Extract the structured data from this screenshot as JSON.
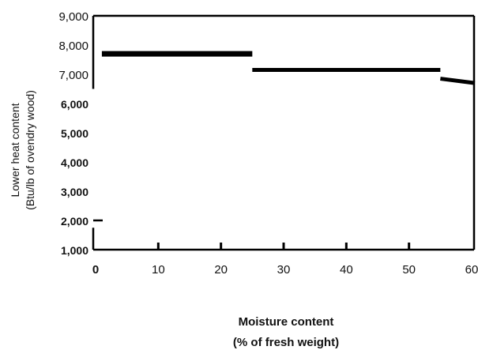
{
  "chart_data": {
    "type": "line",
    "title": "",
    "xlabel_line1": "Moisture content",
    "xlabel_line2": "(% of fresh weight)",
    "ylabel_line1": "Lower heat content",
    "ylabel_line2": "(Btu/lb of ovendry wood)",
    "xlim": [
      0,
      60
    ],
    "ylim": [
      1000,
      9000
    ],
    "x_ticks": [
      0,
      10,
      20,
      30,
      40,
      50,
      60
    ],
    "x_tick_labels": [
      "0",
      "10",
      "20",
      "30",
      "40",
      "50",
      "60"
    ],
    "y_ticks": [
      1000,
      2000,
      3000,
      4000,
      5000,
      6000,
      7000,
      8000,
      9000
    ],
    "y_tick_labels": [
      "1,000",
      "2,000",
      "3,000",
      "4,000",
      "5,000",
      "6,000",
      "7,000",
      "8,000",
      "9,000"
    ],
    "grid": false,
    "legend": "none",
    "colors": {
      "line": "#000000",
      "text": "#111111",
      "background": "#ffffff"
    },
    "series": [
      {
        "segments": [
          {
            "x": [
              1,
              25
            ],
            "y": [
              7700,
              7700
            ]
          },
          {
            "x": [
              25,
              55
            ],
            "y": [
              7150,
              7150
            ]
          },
          {
            "x": [
              55,
              60.5
            ],
            "y": [
              6850,
              6700
            ]
          }
        ]
      }
    ]
  }
}
